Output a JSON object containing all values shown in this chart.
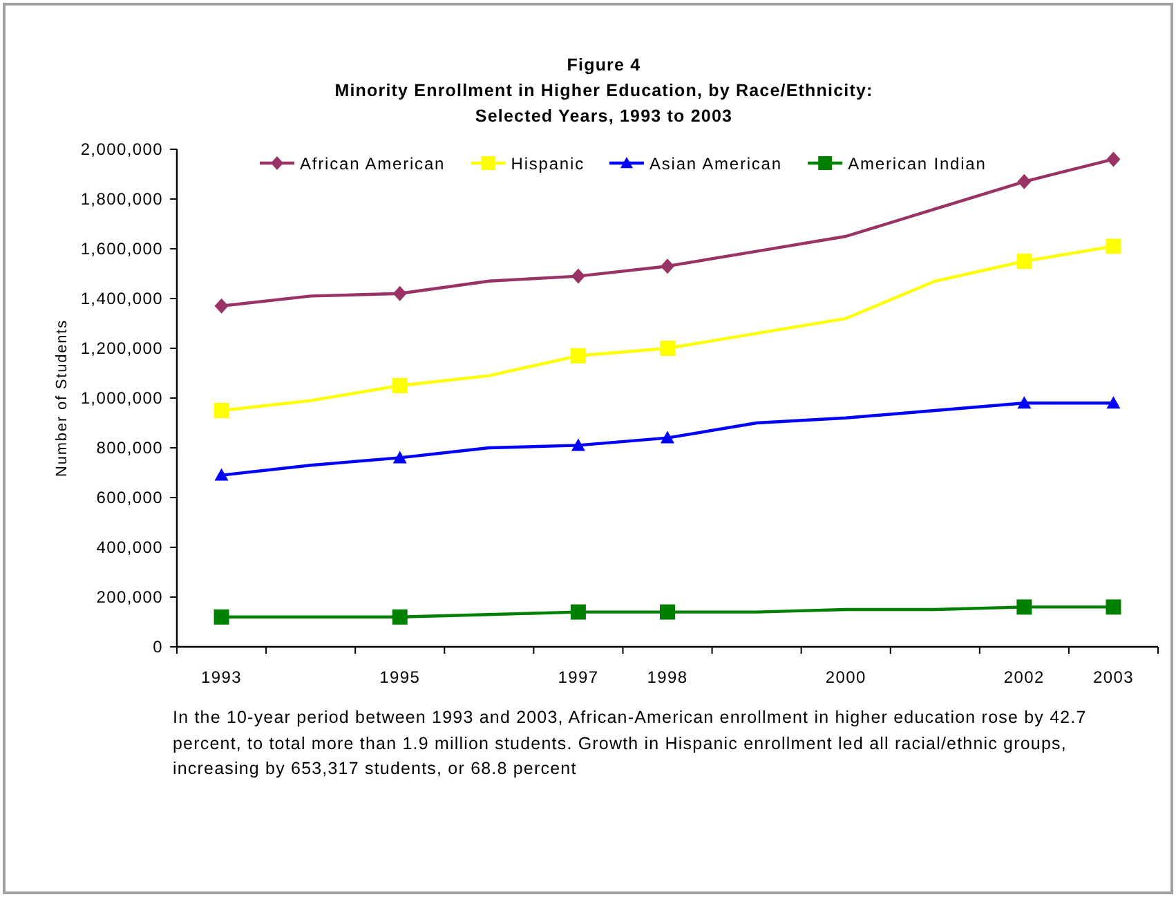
{
  "chart_data": {
    "type": "line",
    "title": "Figure 4\nMinority Enrollment in Higher Education, by Race/Ethnicity:\nSelected Years, 1993 to 2003",
    "ylabel": "Number of Students",
    "categories": [
      "1993",
      null,
      "1995",
      null,
      "1997",
      "1998",
      null,
      "2000",
      null,
      "2002",
      "2003"
    ],
    "series": [
      {
        "name": "African American",
        "color": "#993366",
        "values": [
          1370000,
          1410000,
          1420000,
          1470000,
          1490000,
          1530000,
          1590000,
          1650000,
          1760000,
          1870000,
          1960000
        ]
      },
      {
        "type": "scatter",
        "color": "#993366",
        "marker": "diamond",
        "values": [
          1370000,
          null,
          1420000,
          null,
          1490000,
          1530000,
          null,
          null,
          null,
          1870000,
          1960000
        ]
      },
      {
        "name": "Hispanic",
        "color": "#ffff00",
        "values": [
          950000,
          990000,
          1050000,
          1090000,
          1170000,
          1200000,
          1260000,
          1320000,
          1470000,
          1550000,
          1610000
        ]
      },
      {
        "type": "scatter",
        "color": "#ffff00",
        "marker": "square",
        "values": [
          950000,
          null,
          1050000,
          null,
          1170000,
          1200000,
          null,
          null,
          null,
          1550000,
          1610000
        ]
      },
      {
        "name": "Asian American",
        "color": "#0000ff",
        "values": [
          690000,
          730000,
          760000,
          800000,
          810000,
          840000,
          900000,
          920000,
          950000,
          980000,
          980000
        ]
      },
      {
        "type": "scatter",
        "color": "#0000ff",
        "marker": "triangle",
        "values": [
          690000,
          null,
          760000,
          null,
          810000,
          840000,
          null,
          null,
          null,
          980000,
          980000
        ]
      },
      {
        "name": "American Indian",
        "color": "#008000",
        "values": [
          120000,
          120000,
          120000,
          130000,
          140000,
          140000,
          140000,
          150000,
          150000,
          160000,
          160000
        ]
      },
      {
        "type": "scatter",
        "color": "#008000",
        "marker": "square",
        "values": [
          120000,
          null,
          120000,
          null,
          140000,
          140000,
          null,
          null,
          null,
          160000,
          160000
        ]
      }
    ],
    "ylim": [
      0,
      2000000
    ],
    "yticks": [
      {
        "value": 0,
        "label": "0"
      },
      {
        "value": 200000,
        "label": "200,000"
      },
      {
        "value": 400000,
        "label": "400,000"
      },
      {
        "value": 600000,
        "label": "600,000"
      },
      {
        "value": 800000,
        "label": "800,000"
      },
      {
        "value": 1000000,
        "label": "1,000,000"
      },
      {
        "value": 1200000,
        "label": "1,200,000"
      },
      {
        "value": 1400000,
        "label": "1,400,000"
      },
      {
        "value": 1600000,
        "label": "1,600,000"
      },
      {
        "value": 1800000,
        "label": "1,800,000"
      },
      {
        "value": 2000000,
        "label": "2,000,000"
      }
    ],
    "legend": "top",
    "grid": false,
    "annotations": [
      "In the 10-year period between 1993 and 2003, African-American enrollment in higher education rose by 42.7 percent, to total more than 1.9 million students. Growth in Hispanic enrollment led all racial/ethnic groups, increasing by 653,317 students, or 68.8 percent"
    ]
  }
}
